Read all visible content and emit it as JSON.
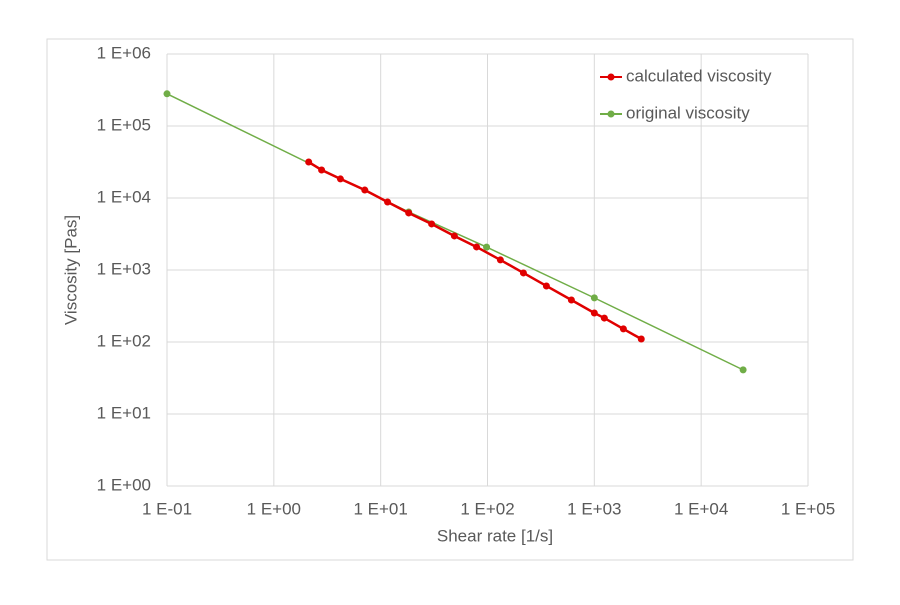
{
  "chart_data": {
    "type": "line",
    "x_label": "Shear rate   [1/s]",
    "y_label": "Viscosity   [Pas]",
    "xscale": "log",
    "yscale": "log",
    "grid": true,
    "legend": "top-right",
    "xlim": [
      0.1,
      100000
    ],
    "xticks": [
      {
        "value": 0.1,
        "label": "1 E-01"
      },
      {
        "value": 1,
        "label": "1 E+00"
      },
      {
        "value": 10,
        "label": "1 E+01"
      },
      {
        "value": 100,
        "label": "1 E+02"
      },
      {
        "value": 1000,
        "label": "1 E+03"
      },
      {
        "value": 10000,
        "label": "1 E+04"
      },
      {
        "value": 100000,
        "label": "1 E+05"
      }
    ],
    "ylim": [
      1,
      1000000
    ],
    "yticks": [
      {
        "value": 1,
        "label": "1 E+00"
      },
      {
        "value": 10,
        "label": "1 E+01"
      },
      {
        "value": 100,
        "label": "1 E+02"
      },
      {
        "value": 1000,
        "label": "1 E+03"
      },
      {
        "value": 10000,
        "label": "1 E+04"
      },
      {
        "value": 100000,
        "label": "1 E+05"
      },
      {
        "value": 1000000,
        "label": "1 E+06"
      }
    ],
    "series": [
      {
        "name": "calculated viscosity",
        "color": "#e00000",
        "x": [
          2.12,
          2.8,
          4.2,
          7.1,
          11.6,
          18.3,
          30,
          49,
          79,
          132,
          217,
          356,
          610,
          1000,
          1240,
          1870,
          2750
        ],
        "values": [
          31600,
          24500,
          18400,
          12900,
          8800,
          6200,
          4360,
          2970,
          2090,
          1380,
          910,
          600,
          383,
          253,
          215,
          152,
          110
        ]
      },
      {
        "name": "original viscosity",
        "color": "#70ad47",
        "x": [
          0.1,
          18.3,
          98,
          1000,
          24700
        ],
        "values": [
          280000,
          6400,
          2080,
          410,
          41
        ]
      }
    ]
  }
}
